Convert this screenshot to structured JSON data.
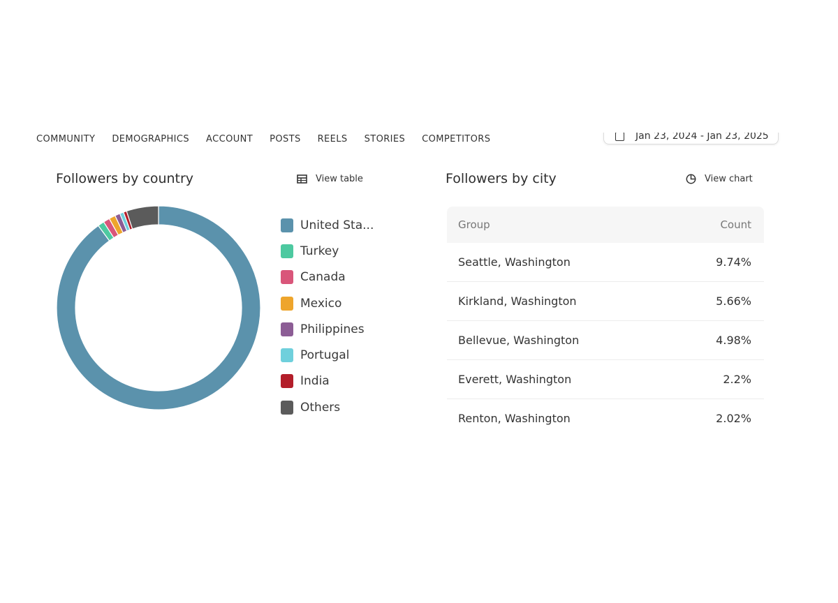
{
  "nav": {
    "tabs": [
      "COMMUNITY",
      "DEMOGRAPHICS",
      "ACCOUNT",
      "POSTS",
      "REELS",
      "STORIES",
      "COMPETITORS"
    ],
    "date_range": "Jan 23, 2024 - Jan 23, 2025"
  },
  "country_card": {
    "title": "Followers by country",
    "view_table_label": "View table"
  },
  "city_card": {
    "title": "Followers by city",
    "view_chart_label": "View chart",
    "columns": [
      "Group",
      "Count"
    ],
    "rows": [
      {
        "group": "Seattle, Washington",
        "count": "9.74%"
      },
      {
        "group": "Kirkland, Washington",
        "count": "5.66%"
      },
      {
        "group": "Bellevue, Washington",
        "count": "4.98%"
      },
      {
        "group": "Everett, Washington",
        "count": "2.2%"
      },
      {
        "group": "Renton, Washington",
        "count": "2.02%"
      }
    ]
  },
  "chart_data": {
    "type": "pie",
    "donut": true,
    "categories": [
      "United Sta...",
      "Turkey",
      "Canada",
      "Mexico",
      "Philippines",
      "Portugal",
      "India",
      "Others"
    ],
    "values": [
      88.5,
      1.0,
      1.0,
      1.0,
      0.8,
      0.6,
      0.5,
      5.0
    ],
    "colors": [
      "#5b92ac",
      "#4dc9a0",
      "#d9567a",
      "#eea52c",
      "#8c5d95",
      "#6fd0dc",
      "#b31e2a",
      "#5b5b5b"
    ],
    "legend_position": "right"
  }
}
